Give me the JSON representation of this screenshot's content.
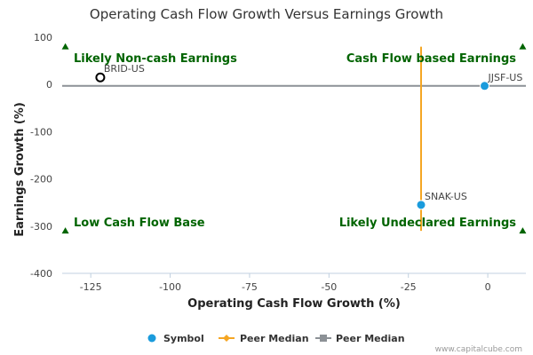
{
  "chart_data": {
    "type": "scatter",
    "title": "Operating Cash Flow Growth Versus Earnings Growth",
    "xlabel": "Operating Cash Flow Growth (%)",
    "ylabel": "Earnings Growth (%)",
    "xlim": [
      -134,
      12
    ],
    "ylim": [
      -400,
      100
    ],
    "xticks": [
      -125,
      -100,
      -75,
      -50,
      -25,
      0
    ],
    "yticks": [
      100,
      0,
      -100,
      -200,
      -300,
      -400
    ],
    "grid": false,
    "legend_placement": "bottom-center",
    "quadrant_labels": [
      {
        "text": "Likely Non-cash Earnings",
        "position": "top-left"
      },
      {
        "text": "Cash Flow based Earnings",
        "position": "top-right"
      },
      {
        "text": "Low Cash Flow Base",
        "position": "bottom-left"
      },
      {
        "text": "Likely Undeclared Earnings",
        "position": "bottom-right"
      }
    ],
    "series": [
      {
        "name": "Symbol",
        "color": "#1a9bdc",
        "points": [
          {
            "label": "SNAK-US",
            "x": -21,
            "y": -255
          }
        ]
      },
      {
        "name": "Peer Median",
        "color": "#f5a623",
        "marker": "diamond",
        "line": {
          "x": -21,
          "y_from": -310,
          "y_to": 80
        }
      },
      {
        "name": "Peer Median",
        "color": "#8c9196",
        "marker": "square",
        "line": {
          "y": -3,
          "x_from": -134,
          "x_to": 12
        }
      }
    ],
    "other_points": [
      {
        "label": "JJSF-US",
        "x": -1,
        "y": -3,
        "style": "filled",
        "color": "#1a9bdc"
      },
      {
        "label": "BRID-US",
        "x": -122,
        "y": 15,
        "style": "hollow",
        "color": "#000000"
      }
    ],
    "corner_markers": [
      {
        "x": -133,
        "y": 80
      },
      {
        "x": 11,
        "y": 80
      },
      {
        "x": -133,
        "y": -310
      },
      {
        "x": 11,
        "y": -310
      }
    ],
    "colors": {
      "quadrant_text": "#006400",
      "axis_line": "#c0d0e0",
      "marker_green": "#006400"
    }
  },
  "credit": "www.capitalcube.com"
}
